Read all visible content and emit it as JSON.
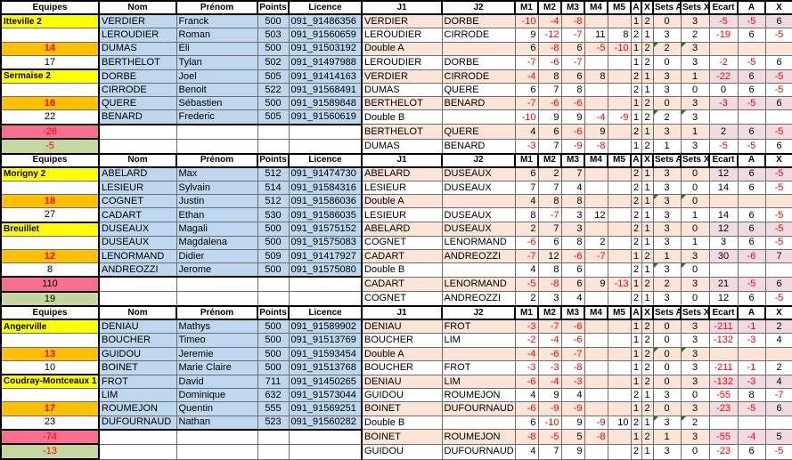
{
  "header": {
    "columns": [
      "Equipes",
      "Nom",
      "Prénom",
      "Points",
      "Licence",
      "J1",
      "J2",
      "M1",
      "M2",
      "M3",
      "M4",
      "M5",
      "A",
      "X",
      "Sets A",
      "Sets X",
      "Ecart",
      "A",
      "X"
    ]
  },
  "colors": {
    "team_bg": "#FFFF00",
    "diff_bg": "#FFC000",
    "pink_total_bg": "#FA6E8E",
    "green_total_bg": "#C5D79E",
    "player_bg": "#BDD7EE",
    "match_row_bg": "#FCE4D6",
    "result_highlight_bg": "#F0DBE1",
    "negative_text": "#FF0000"
  },
  "sections": [
    {
      "rows": [
        {
          "eq": "Itteville 2",
          "eqs": "team",
          "nom": "VERDIER",
          "pre": "Franck",
          "pts": "500",
          "lic": "091_91486356",
          "j1": "VERDIER",
          "j2": "DORBE",
          "m": [
            "-10",
            "-4",
            "-8",
            "",
            ""
          ],
          "a": "1",
          "x": "2",
          "sa": "0",
          "sx": "3",
          "ec": "-5",
          "a2": "-5",
          "x2": "6",
          "tri": false
        },
        {
          "eq": "",
          "eqs": "blank",
          "nom": "LEROUDIER",
          "pre": "Roman",
          "pts": "503",
          "lic": "091_91560659",
          "j1": "LEROUDIER",
          "j2": "CIRRODE",
          "m": [
            "9",
            "-12",
            "-7",
            "11",
            "8"
          ],
          "a": "2",
          "x": "1",
          "sa": "3",
          "sx": "2",
          "ec": "-19",
          "a2": "6",
          "x2": "-5",
          "tri": false
        },
        {
          "eq": "14",
          "eqs": "orange",
          "nom": "DUMAS",
          "pre": "Eli",
          "pts": "500",
          "lic": "091_91503192",
          "j1": "Double A",
          "j2": "",
          "m": [
            "6",
            "-8",
            "6",
            "-5",
            "-10"
          ],
          "a": "1",
          "x": "2",
          "sa": "2",
          "sx": "3",
          "ec": "",
          "a2": "",
          "x2": "",
          "tri": true
        },
        {
          "eq": "17",
          "eqs": "plain",
          "nom": "BERTHELOT",
          "pre": "Tylan",
          "pts": "502",
          "lic": "091_91497988",
          "j1": "LEROUDIER",
          "j2": "DORBE",
          "m": [
            "-7",
            "-6",
            "-7",
            "",
            ""
          ],
          "a": "1",
          "x": "2",
          "sa": "0",
          "sx": "3",
          "ec": "-2",
          "a2": "-5",
          "x2": "6",
          "tri": false
        },
        {
          "eq": "Sermaise 2",
          "eqs": "team",
          "nom": "DORBE",
          "pre": "Joel",
          "pts": "505",
          "lic": "091_91414163",
          "j1": "VERDIER",
          "j2": "CIRRODE",
          "m": [
            "-4",
            "8",
            "6",
            "8",
            ""
          ],
          "a": "2",
          "x": "1",
          "sa": "3",
          "sx": "1",
          "ec": "-22",
          "a2": "6",
          "x2": "-5",
          "tri": false
        },
        {
          "eq": "",
          "eqs": "blank",
          "nom": "CIRRODE",
          "pre": "Benoit",
          "pts": "522",
          "lic": "091_91568491",
          "j1": "DUMAS",
          "j2": "QUERE",
          "m": [
            "6",
            "7",
            "8",
            "",
            ""
          ],
          "a": "2",
          "x": "1",
          "sa": "3",
          "sx": "0",
          "ec": "0",
          "a2": "6",
          "x2": "-5",
          "tri": false
        },
        {
          "eq": "16",
          "eqs": "orange",
          "nom": "QUERE",
          "pre": "Sébastien",
          "pts": "500",
          "lic": "091_91589848",
          "j1": "BERTHELOT",
          "j2": "BENARD",
          "m": [
            "-7",
            "-6",
            "-6",
            "",
            ""
          ],
          "a": "1",
          "x": "2",
          "sa": "0",
          "sx": "3",
          "ec": "-3",
          "a2": "-5",
          "x2": "6",
          "tri": false
        },
        {
          "eq": "22",
          "eqs": "plain",
          "nom": "BENARD",
          "pre": "Frederic",
          "pts": "505",
          "lic": "091_91560619",
          "j1": "Double B",
          "j2": "",
          "m": [
            "-10",
            "9",
            "9",
            "-4",
            "-9"
          ],
          "a": "1",
          "x": "2",
          "sa": "2",
          "sx": "3",
          "ec": "",
          "a2": "",
          "x2": "",
          "tri": true
        },
        {
          "eq": "-26",
          "eqs": "pink",
          "nom": "",
          "pre": "",
          "pts": "",
          "lic": "",
          "j1": "BERTHELOT",
          "j2": "QUERE",
          "m": [
            "4",
            "6",
            "-6",
            "9",
            ""
          ],
          "a": "2",
          "x": "1",
          "sa": "3",
          "sx": "1",
          "ec": "2",
          "a2": "6",
          "x2": "-5",
          "tri": false
        },
        {
          "eq": "-5",
          "eqs": "green",
          "nom": "",
          "pre": "",
          "pts": "",
          "lic": "",
          "j1": "DUMAS",
          "j2": "BENARD",
          "m": [
            "-3",
            "7",
            "-9",
            "-8",
            ""
          ],
          "a": "1",
          "x": "2",
          "sa": "1",
          "sx": "3",
          "ec": "-5",
          "a2": "-5",
          "x2": "6",
          "tri": false
        }
      ]
    },
    {
      "rows": [
        {
          "eq": "Morigny 2",
          "eqs": "team",
          "nom": "ABELARD",
          "pre": "Max",
          "pts": "512",
          "lic": "091_91474730",
          "j1": "ABELARD",
          "j2": "DUSEAUX",
          "m": [
            "6",
            "2",
            "7",
            "",
            ""
          ],
          "a": "2",
          "x": "1",
          "sa": "3",
          "sx": "0",
          "ec": "12",
          "a2": "6",
          "x2": "-5",
          "tri": false
        },
        {
          "eq": "",
          "eqs": "blank",
          "nom": "LESIEUR",
          "pre": "Sylvain",
          "pts": "514",
          "lic": "091_91584316",
          "j1": "LESIEUR",
          "j2": "DUSEAUX",
          "m": [
            "7",
            "7",
            "4",
            "",
            ""
          ],
          "a": "2",
          "x": "1",
          "sa": "3",
          "sx": "0",
          "ec": "14",
          "a2": "6",
          "x2": "-5",
          "tri": false
        },
        {
          "eq": "18",
          "eqs": "orange",
          "nom": "COGNET",
          "pre": "Justin",
          "pts": "512",
          "lic": "091_91586036",
          "j1": "Double A",
          "j2": "",
          "m": [
            "4",
            "8",
            "8",
            "",
            ""
          ],
          "a": "2",
          "x": "1",
          "sa": "3",
          "sx": "0",
          "ec": "",
          "a2": "",
          "x2": "",
          "tri": true
        },
        {
          "eq": "27",
          "eqs": "plain",
          "nom": "CADART",
          "pre": "Ethan",
          "pts": "530",
          "lic": "091_91586035",
          "j1": "LESIEUR",
          "j2": "DUSEAUX",
          "m": [
            "8",
            "-7",
            "3",
            "12",
            ""
          ],
          "a": "2",
          "x": "1",
          "sa": "3",
          "sx": "1",
          "ec": "14",
          "a2": "6",
          "x2": "-5",
          "tri": false
        },
        {
          "eq": "Breuillet",
          "eqs": "team",
          "nom": "DUSEAUX",
          "pre": "Magali",
          "pts": "500",
          "lic": "091_91575152",
          "j1": "ABELARD",
          "j2": "DUSEAUX",
          "m": [
            "2",
            "7",
            "3",
            "",
            ""
          ],
          "a": "2",
          "x": "1",
          "sa": "3",
          "sx": "0",
          "ec": "12",
          "a2": "6",
          "x2": "-5",
          "tri": false
        },
        {
          "eq": "",
          "eqs": "blank",
          "nom": "DUSEAUX",
          "pre": "Magdalena",
          "pts": "500",
          "lic": "091_91575083",
          "j1": "COGNET",
          "j2": "LENORMAND",
          "m": [
            "-6",
            "6",
            "8",
            "2",
            ""
          ],
          "a": "2",
          "x": "1",
          "sa": "3",
          "sx": "1",
          "ec": "3",
          "a2": "6",
          "x2": "-5",
          "tri": false
        },
        {
          "eq": "12",
          "eqs": "orange",
          "nom": "LENORMAND",
          "pre": "Didier",
          "pts": "509",
          "lic": "091_91417927",
          "j1": "CADART",
          "j2": "ANDREOZZI",
          "m": [
            "-7",
            "12",
            "-6",
            "-7",
            ""
          ],
          "a": "1",
          "x": "2",
          "sa": "1",
          "sx": "3",
          "ec": "30",
          "a2": "-6",
          "x2": "7",
          "tri": false
        },
        {
          "eq": "8",
          "eqs": "plain",
          "nom": "ANDREOZZI",
          "pre": "Jerome",
          "pts": "500",
          "lic": "091_91575080",
          "j1": "Double B",
          "j2": "",
          "m": [
            "4",
            "8",
            "6",
            "",
            ""
          ],
          "a": "2",
          "x": "1",
          "sa": "3",
          "sx": "0",
          "ec": "",
          "a2": "",
          "x2": "",
          "tri": true
        },
        {
          "eq": "110",
          "eqs": "pink",
          "nom": "",
          "pre": "",
          "pts": "",
          "lic": "",
          "j1": "CADART",
          "j2": "LENORMAND",
          "m": [
            "-5",
            "-8",
            "6",
            "9",
            "-13"
          ],
          "a": "1",
          "x": "2",
          "sa": "2",
          "sx": "3",
          "ec": "21",
          "a2": "-5",
          "x2": "6",
          "tri": false
        },
        {
          "eq": "19",
          "eqs": "green",
          "nom": "",
          "pre": "",
          "pts": "",
          "lic": "",
          "j1": "COGNET",
          "j2": "ANDREOZZI",
          "m": [
            "2",
            "3",
            "4",
            "",
            ""
          ],
          "a": "2",
          "x": "1",
          "sa": "3",
          "sx": "0",
          "ec": "12",
          "a2": "6",
          "x2": "-5",
          "tri": false
        }
      ]
    },
    {
      "rows": [
        {
          "eq": "Angerville",
          "eqs": "team",
          "nom": "DENIAU",
          "pre": "Mathys",
          "pts": "500",
          "lic": "091_91589902",
          "j1": "DENIAU",
          "j2": "FROT",
          "m": [
            "-3",
            "-7",
            "-6",
            "",
            ""
          ],
          "a": "1",
          "x": "2",
          "sa": "0",
          "sx": "3",
          "ec": "-211",
          "a2": "-1",
          "x2": "2",
          "tri": false
        },
        {
          "eq": "",
          "eqs": "blank",
          "nom": "BOUCHER",
          "pre": "Timeo",
          "pts": "500",
          "lic": "091_91513769",
          "j1": "BOUCHER",
          "j2": "LIM",
          "m": [
            "-2",
            "-4",
            "-6",
            "",
            ""
          ],
          "a": "1",
          "x": "2",
          "sa": "0",
          "sx": "3",
          "ec": "-132",
          "a2": "-3",
          "x2": "4",
          "tri": false
        },
        {
          "eq": "13",
          "eqs": "orange",
          "nom": "GUIDOU",
          "pre": "Jeremie",
          "pts": "500",
          "lic": "091_91593454",
          "j1": "Double A",
          "j2": "",
          "m": [
            "-4",
            "-6",
            "-7",
            "",
            ""
          ],
          "a": "1",
          "x": "2",
          "sa": "0",
          "sx": "3",
          "ec": "",
          "a2": "",
          "x2": "",
          "tri": true
        },
        {
          "eq": "10",
          "eqs": "plain",
          "nom": "BOINET",
          "pre": "Marie Claire",
          "pts": "500",
          "lic": "091_91513768",
          "j1": "BOUCHER",
          "j2": "FROT",
          "m": [
            "-3",
            "-3",
            "-8",
            "",
            ""
          ],
          "a": "1",
          "x": "2",
          "sa": "0",
          "sx": "3",
          "ec": "-211",
          "a2": "-1",
          "x2": "2",
          "tri": false
        },
        {
          "eq": "Coudray-Montceaux 1",
          "eqs": "team",
          "nom": "FROT",
          "pre": "David",
          "pts": "711",
          "lic": "091_91450265",
          "j1": "DENIAU",
          "j2": "LIM",
          "m": [
            "-6",
            "-4",
            "-3",
            "",
            ""
          ],
          "a": "1",
          "x": "2",
          "sa": "0",
          "sx": "3",
          "ec": "-132",
          "a2": "-3",
          "x2": "4",
          "tri": false
        },
        {
          "eq": "",
          "eqs": "blank",
          "nom": "LIM",
          "pre": "Dominique",
          "pts": "632",
          "lic": "091_91573044",
          "j1": "GUIDOU",
          "j2": "ROUMEJON",
          "m": [
            "4",
            "9",
            "4",
            "",
            ""
          ],
          "a": "2",
          "x": "1",
          "sa": "3",
          "sx": "0",
          "ec": "-55",
          "a2": "8",
          "x2": "-7",
          "tri": false
        },
        {
          "eq": "17",
          "eqs": "orange",
          "nom": "ROUMEJON",
          "pre": "Quentin",
          "pts": "555",
          "lic": "091_91569251",
          "j1": "BOINET",
          "j2": "DUFOURNAUD",
          "m": [
            "-6",
            "-9",
            "-9",
            "",
            ""
          ],
          "a": "1",
          "x": "2",
          "sa": "0",
          "sx": "3",
          "ec": "-23",
          "a2": "-5",
          "x2": "6",
          "tri": false
        },
        {
          "eq": "23",
          "eqs": "plain",
          "nom": "DUFOURNAUD",
          "pre": "Nathan",
          "pts": "523",
          "lic": "091_91560282",
          "j1": "Double B",
          "j2": "",
          "m": [
            "6",
            "-10",
            "9",
            "-9",
            "10"
          ],
          "a": "2",
          "x": "1",
          "sa": "3",
          "sx": "2",
          "ec": "",
          "a2": "",
          "x2": "",
          "tri": true
        },
        {
          "eq": "-74",
          "eqs": "pink",
          "nom": "",
          "pre": "",
          "pts": "",
          "lic": "",
          "j1": "BOINET",
          "j2": "ROUMEJON",
          "m": [
            "-8",
            "-5",
            "5",
            "-8",
            ""
          ],
          "a": "1",
          "x": "2",
          "sa": "1",
          "sx": "3",
          "ec": "-55",
          "a2": "-4",
          "x2": "5",
          "tri": false
        },
        {
          "eq": "-13",
          "eqs": "green",
          "nom": "",
          "pre": "",
          "pts": "",
          "lic": "",
          "j1": "GUIDOU",
          "j2": "DUFOURNAUD",
          "m": [
            "4",
            "7",
            "9",
            "",
            ""
          ],
          "a": "2",
          "x": "1",
          "sa": "3",
          "sx": "0",
          "ec": "-23",
          "a2": "6",
          "x2": "-5",
          "tri": false
        }
      ]
    }
  ]
}
